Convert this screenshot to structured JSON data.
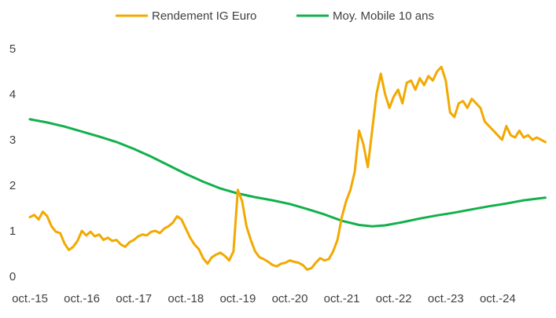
{
  "chart_data": {
    "type": "line",
    "title": "",
    "xlabel": "",
    "ylabel": "",
    "ylim": [
      0,
      5
    ],
    "yticks": [
      0,
      1,
      2,
      3,
      4,
      5
    ],
    "xlim": [
      "2015-10",
      "2025-10"
    ],
    "xticks": [
      {
        "date": "2015-10",
        "label": "oct.-15"
      },
      {
        "date": "2016-10",
        "label": "oct.-16"
      },
      {
        "date": "2017-10",
        "label": "oct.-17"
      },
      {
        "date": "2018-10",
        "label": "oct.-18"
      },
      {
        "date": "2019-10",
        "label": "oct.-19"
      },
      {
        "date": "2020-10",
        "label": "oct.-20"
      },
      {
        "date": "2021-10",
        "label": "oct.-21"
      },
      {
        "date": "2022-10",
        "label": "oct.-22"
      },
      {
        "date": "2023-10",
        "label": "oct.-23"
      },
      {
        "date": "2024-10",
        "label": "oct.-24"
      }
    ],
    "grid": false,
    "legend": "top",
    "series": [
      {
        "name": "Rendement IG Euro",
        "color": "#f2a900",
        "points": [
          [
            "2015-10",
            1.3
          ],
          [
            "2015-11",
            1.35
          ],
          [
            "2015-12",
            1.25
          ],
          [
            "2016-01",
            1.42
          ],
          [
            "2016-02",
            1.32
          ],
          [
            "2016-03",
            1.1
          ],
          [
            "2016-04",
            0.98
          ],
          [
            "2016-05",
            0.95
          ],
          [
            "2016-06",
            0.72
          ],
          [
            "2016-07",
            0.58
          ],
          [
            "2016-08",
            0.65
          ],
          [
            "2016-09",
            0.78
          ],
          [
            "2016-10",
            1.0
          ],
          [
            "2016-11",
            0.9
          ],
          [
            "2016-12",
            0.98
          ],
          [
            "2017-01",
            0.88
          ],
          [
            "2017-02",
            0.92
          ],
          [
            "2017-03",
            0.8
          ],
          [
            "2017-04",
            0.85
          ],
          [
            "2017-05",
            0.78
          ],
          [
            "2017-06",
            0.8
          ],
          [
            "2017-07",
            0.7
          ],
          [
            "2017-08",
            0.65
          ],
          [
            "2017-09",
            0.75
          ],
          [
            "2017-10",
            0.8
          ],
          [
            "2017-11",
            0.88
          ],
          [
            "2017-12",
            0.92
          ],
          [
            "2018-01",
            0.9
          ],
          [
            "2018-02",
            0.98
          ],
          [
            "2018-03",
            1.0
          ],
          [
            "2018-04",
            0.95
          ],
          [
            "2018-05",
            1.05
          ],
          [
            "2018-06",
            1.1
          ],
          [
            "2018-07",
            1.18
          ],
          [
            "2018-08",
            1.32
          ],
          [
            "2018-09",
            1.25
          ],
          [
            "2018-10",
            1.05
          ],
          [
            "2018-11",
            0.85
          ],
          [
            "2018-12",
            0.7
          ],
          [
            "2019-01",
            0.6
          ],
          [
            "2019-02",
            0.4
          ],
          [
            "2019-03",
            0.28
          ],
          [
            "2019-04",
            0.42
          ],
          [
            "2019-05",
            0.48
          ],
          [
            "2019-06",
            0.52
          ],
          [
            "2019-07",
            0.45
          ],
          [
            "2019-08",
            0.35
          ],
          [
            "2019-09",
            0.55
          ],
          [
            "2019-10",
            1.9
          ],
          [
            "2019-11",
            1.65
          ],
          [
            "2019-12",
            1.1
          ],
          [
            "2020-01",
            0.8
          ],
          [
            "2020-02",
            0.55
          ],
          [
            "2020-03",
            0.42
          ],
          [
            "2020-04",
            0.38
          ],
          [
            "2020-05",
            0.32
          ],
          [
            "2020-06",
            0.25
          ],
          [
            "2020-07",
            0.22
          ],
          [
            "2020-08",
            0.28
          ],
          [
            "2020-09",
            0.3
          ],
          [
            "2020-10",
            0.35
          ],
          [
            "2020-11",
            0.32
          ],
          [
            "2020-12",
            0.3
          ],
          [
            "2021-01",
            0.25
          ],
          [
            "2021-02",
            0.15
          ],
          [
            "2021-03",
            0.18
          ],
          [
            "2021-04",
            0.3
          ],
          [
            "2021-05",
            0.4
          ],
          [
            "2021-06",
            0.35
          ],
          [
            "2021-07",
            0.38
          ],
          [
            "2021-08",
            0.55
          ],
          [
            "2021-09",
            0.8
          ],
          [
            "2021-10",
            1.3
          ],
          [
            "2021-11",
            1.65
          ],
          [
            "2021-12",
            1.9
          ],
          [
            "2022-01",
            2.3
          ],
          [
            "2022-02",
            3.2
          ],
          [
            "2022-03",
            2.9
          ],
          [
            "2022-04",
            2.4
          ],
          [
            "2022-05",
            3.2
          ],
          [
            "2022-06",
            4.0
          ],
          [
            "2022-07",
            4.45
          ],
          [
            "2022-08",
            4.0
          ],
          [
            "2022-09",
            3.7
          ],
          [
            "2022-10",
            3.95
          ],
          [
            "2022-11",
            4.1
          ],
          [
            "2022-12",
            3.8
          ],
          [
            "2023-01",
            4.25
          ],
          [
            "2023-02",
            4.3
          ],
          [
            "2023-03",
            4.1
          ],
          [
            "2023-04",
            4.35
          ],
          [
            "2023-05",
            4.2
          ],
          [
            "2023-06",
            4.4
          ],
          [
            "2023-07",
            4.3
          ],
          [
            "2023-08",
            4.5
          ],
          [
            "2023-09",
            4.6
          ],
          [
            "2023-10",
            4.3
          ],
          [
            "2023-11",
            3.6
          ],
          [
            "2023-12",
            3.5
          ],
          [
            "2024-01",
            3.8
          ],
          [
            "2024-02",
            3.85
          ],
          [
            "2024-03",
            3.7
          ],
          [
            "2024-04",
            3.9
          ],
          [
            "2024-05",
            3.8
          ],
          [
            "2024-06",
            3.7
          ],
          [
            "2024-07",
            3.4
          ],
          [
            "2024-08",
            3.3
          ],
          [
            "2024-09",
            3.2
          ],
          [
            "2024-10",
            3.1
          ],
          [
            "2024-11",
            3.0
          ],
          [
            "2024-12",
            3.3
          ],
          [
            "2025-01",
            3.1
          ],
          [
            "2025-02",
            3.05
          ],
          [
            "2025-03",
            3.2
          ],
          [
            "2025-04",
            3.05
          ],
          [
            "2025-05",
            3.1
          ],
          [
            "2025-06",
            3.0
          ],
          [
            "2025-07",
            3.05
          ],
          [
            "2025-08",
            3.0
          ],
          [
            "2025-09",
            2.95
          ]
        ]
      },
      {
        "name": "Moy. Mobile 10 ans",
        "color": "#12b04c",
        "points": [
          [
            "2015-10",
            3.45
          ],
          [
            "2016-02",
            3.38
          ],
          [
            "2016-06",
            3.29
          ],
          [
            "2016-10",
            3.18
          ],
          [
            "2017-02",
            3.07
          ],
          [
            "2017-06",
            2.95
          ],
          [
            "2017-10",
            2.8
          ],
          [
            "2018-02",
            2.63
          ],
          [
            "2018-06",
            2.44
          ],
          [
            "2018-10",
            2.25
          ],
          [
            "2019-02",
            2.08
          ],
          [
            "2019-06",
            1.93
          ],
          [
            "2019-10",
            1.82
          ],
          [
            "2020-02",
            1.74
          ],
          [
            "2020-06",
            1.67
          ],
          [
            "2020-10",
            1.59
          ],
          [
            "2021-02",
            1.48
          ],
          [
            "2021-06",
            1.36
          ],
          [
            "2021-10",
            1.22
          ],
          [
            "2022-02",
            1.13
          ],
          [
            "2022-05",
            1.1
          ],
          [
            "2022-08",
            1.12
          ],
          [
            "2022-12",
            1.19
          ],
          [
            "2023-04",
            1.27
          ],
          [
            "2023-08",
            1.34
          ],
          [
            "2023-12",
            1.4
          ],
          [
            "2024-04",
            1.47
          ],
          [
            "2024-08",
            1.54
          ],
          [
            "2024-12",
            1.6
          ],
          [
            "2025-04",
            1.67
          ],
          [
            "2025-09",
            1.73
          ]
        ]
      }
    ]
  }
}
